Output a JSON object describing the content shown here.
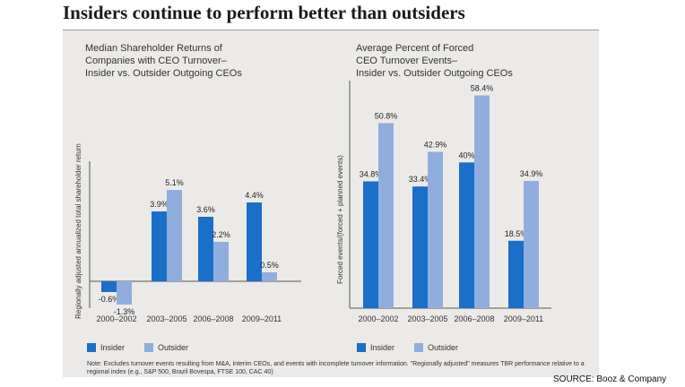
{
  "headline": "Insiders continue to perform better than outsiders",
  "source": "SOURCE: Booz & Company",
  "note": "Note: Excludes turnover events resulting from M&A, interim CEOs, and events with incomplete turnover information. \"Regionally adjusted\" measures TBR performance relative to a regional index (e.g., S&P 500, Brazil Bovespa, FTSE 100, CAC 40)",
  "colors": {
    "insider": "#1a6fc9",
    "outsider": "#8faede",
    "panel": "#eceae8"
  },
  "chart_data": [
    {
      "type": "bar",
      "title_lines": [
        "Median Shareholder Returns of",
        "Companies with CEO Turnover–",
        "Insider vs. Outsider Outgoing CEOs"
      ],
      "ylabel": "Regionally adjusted annualized total shareholder return",
      "categories": [
        "2000–2002",
        "2003–2005",
        "2006–2008",
        "2009–2011"
      ],
      "series": [
        {
          "name": "Insider",
          "values": [
            -0.6,
            3.9,
            3.6,
            4.4
          ],
          "labels": [
            "-0.6%",
            "3.9%",
            "3.6%",
            "4.4%"
          ]
        },
        {
          "name": "Outsider",
          "values": [
            -1.3,
            5.1,
            2.2,
            0.5
          ],
          "labels": [
            "-1.3%",
            "5.1%",
            "2.2%",
            "0.5%"
          ]
        }
      ],
      "ylim": [
        -1.5,
        6.2
      ],
      "grid": false,
      "legend": "bottom-left"
    },
    {
      "type": "bar",
      "title_lines": [
        "Average Percent of Forced",
        "CEO Turnover Events–",
        "Insider vs. Outsider Outgoing CEOs"
      ],
      "ylabel": "Forced events/(forced + planned events)",
      "categories": [
        "2000–2002",
        "2003–2005",
        "2006–2008",
        "2009–2011"
      ],
      "series": [
        {
          "name": "Insider",
          "values": [
            34.8,
            33.4,
            40,
            18.5
          ],
          "labels": [
            "34.8%",
            "33.4%",
            "40%",
            "18.5%"
          ]
        },
        {
          "name": "Outsider",
          "values": [
            50.8,
            42.9,
            58.4,
            34.9
          ],
          "labels": [
            "50.8%",
            "42.9%",
            "58.4%",
            "34.9%"
          ]
        }
      ],
      "ylim": [
        0,
        60
      ],
      "grid": false,
      "legend": "bottom-left"
    }
  ]
}
